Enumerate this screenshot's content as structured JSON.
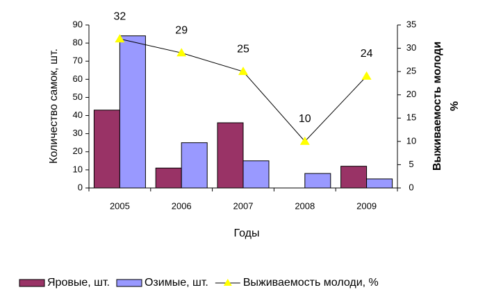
{
  "chart_data": {
    "type": "bar",
    "categories": [
      "2005",
      "2006",
      "2007",
      "2008",
      "2009"
    ],
    "xlabel": "Годы",
    "ylabel": "Количество самок, шт.",
    "y2label": [
      "Выживаемость молоди",
      "%"
    ],
    "ylim": [
      0,
      90
    ],
    "yticks": [
      0,
      10,
      20,
      30,
      40,
      50,
      60,
      70,
      80,
      90
    ],
    "y2lim": [
      0,
      35
    ],
    "y2ticks": [
      0,
      5,
      10,
      15,
      20,
      25,
      30,
      35
    ],
    "series": [
      {
        "name": "Яровые, шт.",
        "type": "bar",
        "color": "#993366",
        "values": [
          43,
          11,
          36,
          0,
          12
        ]
      },
      {
        "name": "Озимые, шт.",
        "type": "bar",
        "color": "#9999ff",
        "values": [
          84,
          25,
          15,
          8,
          5
        ]
      },
      {
        "name": "Выживаемость молоди, %",
        "type": "line",
        "axis": "y2",
        "color": "#000000",
        "marker_color": "#ffff00",
        "values": [
          32,
          29,
          25,
          10,
          24
        ]
      }
    ],
    "legend": "bottom"
  }
}
